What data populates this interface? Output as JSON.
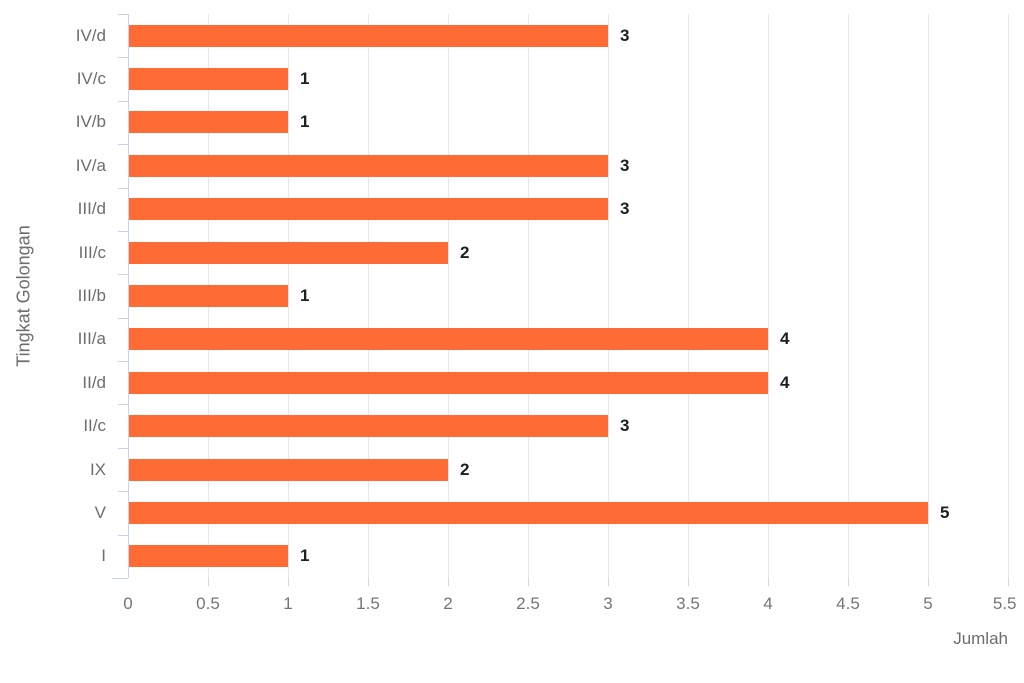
{
  "chart_data": {
    "type": "bar",
    "orientation": "horizontal",
    "title": "",
    "xlabel": "Jumlah",
    "ylabel": "Tingkat Golongan",
    "categories": [
      "IV/d",
      "IV/c",
      "IV/b",
      "IV/a",
      "III/d",
      "III/c",
      "III/b",
      "III/a",
      "II/d",
      "II/c",
      "IX",
      "V",
      "I"
    ],
    "values": [
      3,
      1,
      1,
      3,
      3,
      2,
      1,
      4,
      4,
      3,
      2,
      5,
      1
    ],
    "data_labels": [
      "3",
      "1",
      "1",
      "3",
      "3",
      "2",
      "1",
      "4",
      "4",
      "3",
      "2",
      "5",
      "1"
    ],
    "xlim": [
      0,
      5.5
    ],
    "xticks": [
      0,
      0.5,
      1,
      1.5,
      2,
      2.5,
      3,
      3.5,
      4,
      4.5,
      5,
      5.5
    ],
    "grid": "vertical-only",
    "legend": "none",
    "colors": {
      "bar": "#ff6b35",
      "axis_line": "#c8d4ee",
      "gridline": "#e7e7e7",
      "category_text": "#6d6d6d",
      "tick_text": "#757575",
      "value_text": "#202020"
    }
  }
}
